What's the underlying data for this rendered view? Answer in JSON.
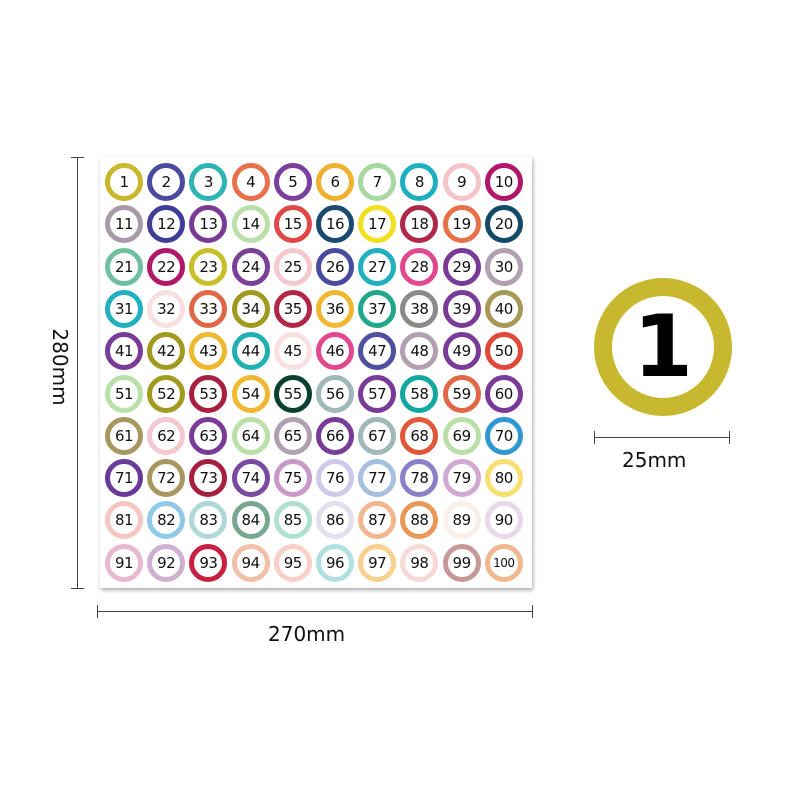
{
  "sheet": {
    "height_label": "280mm",
    "width_label": "270mm",
    "stickers": [
      "1",
      "2",
      "3",
      "4",
      "5",
      "6",
      "7",
      "8",
      "9",
      "10",
      "11",
      "12",
      "13",
      "14",
      "15",
      "16",
      "17",
      "18",
      "19",
      "20",
      "21",
      "22",
      "23",
      "24",
      "25",
      "26",
      "27",
      "28",
      "29",
      "30",
      "31",
      "32",
      "33",
      "34",
      "35",
      "36",
      "37",
      "38",
      "39",
      "40",
      "41",
      "42",
      "43",
      "44",
      "45",
      "46",
      "47",
      "48",
      "49",
      "50",
      "51",
      "52",
      "53",
      "54",
      "55",
      "56",
      "57",
      "58",
      "59",
      "60",
      "61",
      "62",
      "63",
      "64",
      "65",
      "66",
      "67",
      "68",
      "69",
      "70",
      "71",
      "72",
      "73",
      "74",
      "75",
      "76",
      "77",
      "78",
      "79",
      "80",
      "81",
      "82",
      "83",
      "84",
      "85",
      "86",
      "87",
      "88",
      "89",
      "90",
      "91",
      "92",
      "93",
      "94",
      "95",
      "96",
      "97",
      "98",
      "99",
      "100"
    ],
    "ring_colors": [
      "#c9b82c",
      "#4a4aa0",
      "#2fb3b3",
      "#e8704a",
      "#7a3f9d",
      "#f0b030",
      "#a8d8a0",
      "#1fb0c0",
      "#f4c4c8",
      "#b0166a",
      "#a89aa8",
      "#3e3e98",
      "#7a3a98",
      "#b8e0a8",
      "#e04848",
      "#1a4a70",
      "#f0e020",
      "#b02848",
      "#e8704a",
      "#124a68",
      "#70c0a0",
      "#b01868",
      "#c8c028",
      "#7a4098",
      "#f4c8d0",
      "#4a4aa0",
      "#20b0c0",
      "#e04890",
      "#7a3a98",
      "#b0a0b0",
      "#20b0c0",
      "#f8e0e0",
      "#e06848",
      "#a09a20",
      "#b02848",
      "#f0b830",
      "#20a888",
      "#8a8a8a",
      "#7a3a98",
      "#a89858",
      "#7a3a98",
      "#a09a20",
      "#f0b830",
      "#20b0b0",
      "#f8e0e0",
      "#e04890",
      "#5050a0",
      "#b0a0b0",
      "#7a3a98",
      "#e04838",
      "#b8e0a8",
      "#a09a20",
      "#a82040",
      "#f0b830",
      "#0a4030",
      "#a0b8b8",
      "#7a3a98",
      "#10a8a0",
      "#e06848",
      "#7a3a98",
      "#a89860",
      "#f4c8d0",
      "#7a3a98",
      "#b8e0a8",
      "#b0a0b0",
      "#7a3a98",
      "#a0b8b8",
      "#e05838",
      "#b8e0a8",
      "#3098d0",
      "#6a3a98",
      "#a89860",
      "#a82040",
      "#7a4aa0",
      "#c898c8",
      "#d0c8e8",
      "#a8c0e0",
      "#8a80c8",
      "#d0a8d0",
      "#f8e070",
      "#f4c8c0",
      "#90c8e8",
      "#b0d8d8",
      "#78a890",
      "#b0e0d0",
      "#e0e0f0",
      "#f0b890",
      "#e89858",
      "#f8f0e8",
      "#e8d8e8",
      "#e8b8d0",
      "#d0b0d0",
      "#c82040",
      "#f0c0a8",
      "#f8d0c8",
      "#b0e0e0",
      "#f8d090",
      "#f8d8d8",
      "#c89898",
      "#f0b890"
    ]
  },
  "detail": {
    "number": "1",
    "ring_color": "#c8b830",
    "diameter_label": "25mm"
  }
}
